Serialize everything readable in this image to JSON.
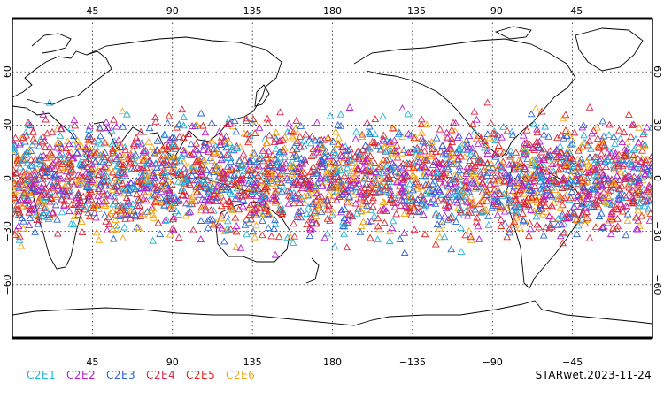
{
  "map": {
    "projection": "equirectangular",
    "center_longitude": 0,
    "lon_range": [
      0,
      360
    ],
    "lat_range": [
      -90,
      90
    ],
    "grid": "dotted",
    "lon_ticks": [
      "45",
      "90",
      "135",
      "180",
      "−135",
      "−90",
      "−45"
    ],
    "lat_ticks": [
      "60",
      "30",
      "0",
      "−30",
      "−60"
    ],
    "marker_symbol": "triangle-open",
    "observation_band_lat": [
      -45,
      45
    ]
  },
  "series": [
    {
      "name": "C2E1",
      "color": "#22b2d8"
    },
    {
      "name": "C2E2",
      "color": "#b21ecf"
    },
    {
      "name": "C2E3",
      "color": "#2a64d6"
    },
    {
      "name": "C2E4",
      "color": "#d52a4a"
    },
    {
      "name": "C2E5",
      "color": "#e2281e"
    },
    {
      "name": "C2E6",
      "color": "#f2a614"
    }
  ],
  "stamp": "STARwet.2023-11-24"
}
